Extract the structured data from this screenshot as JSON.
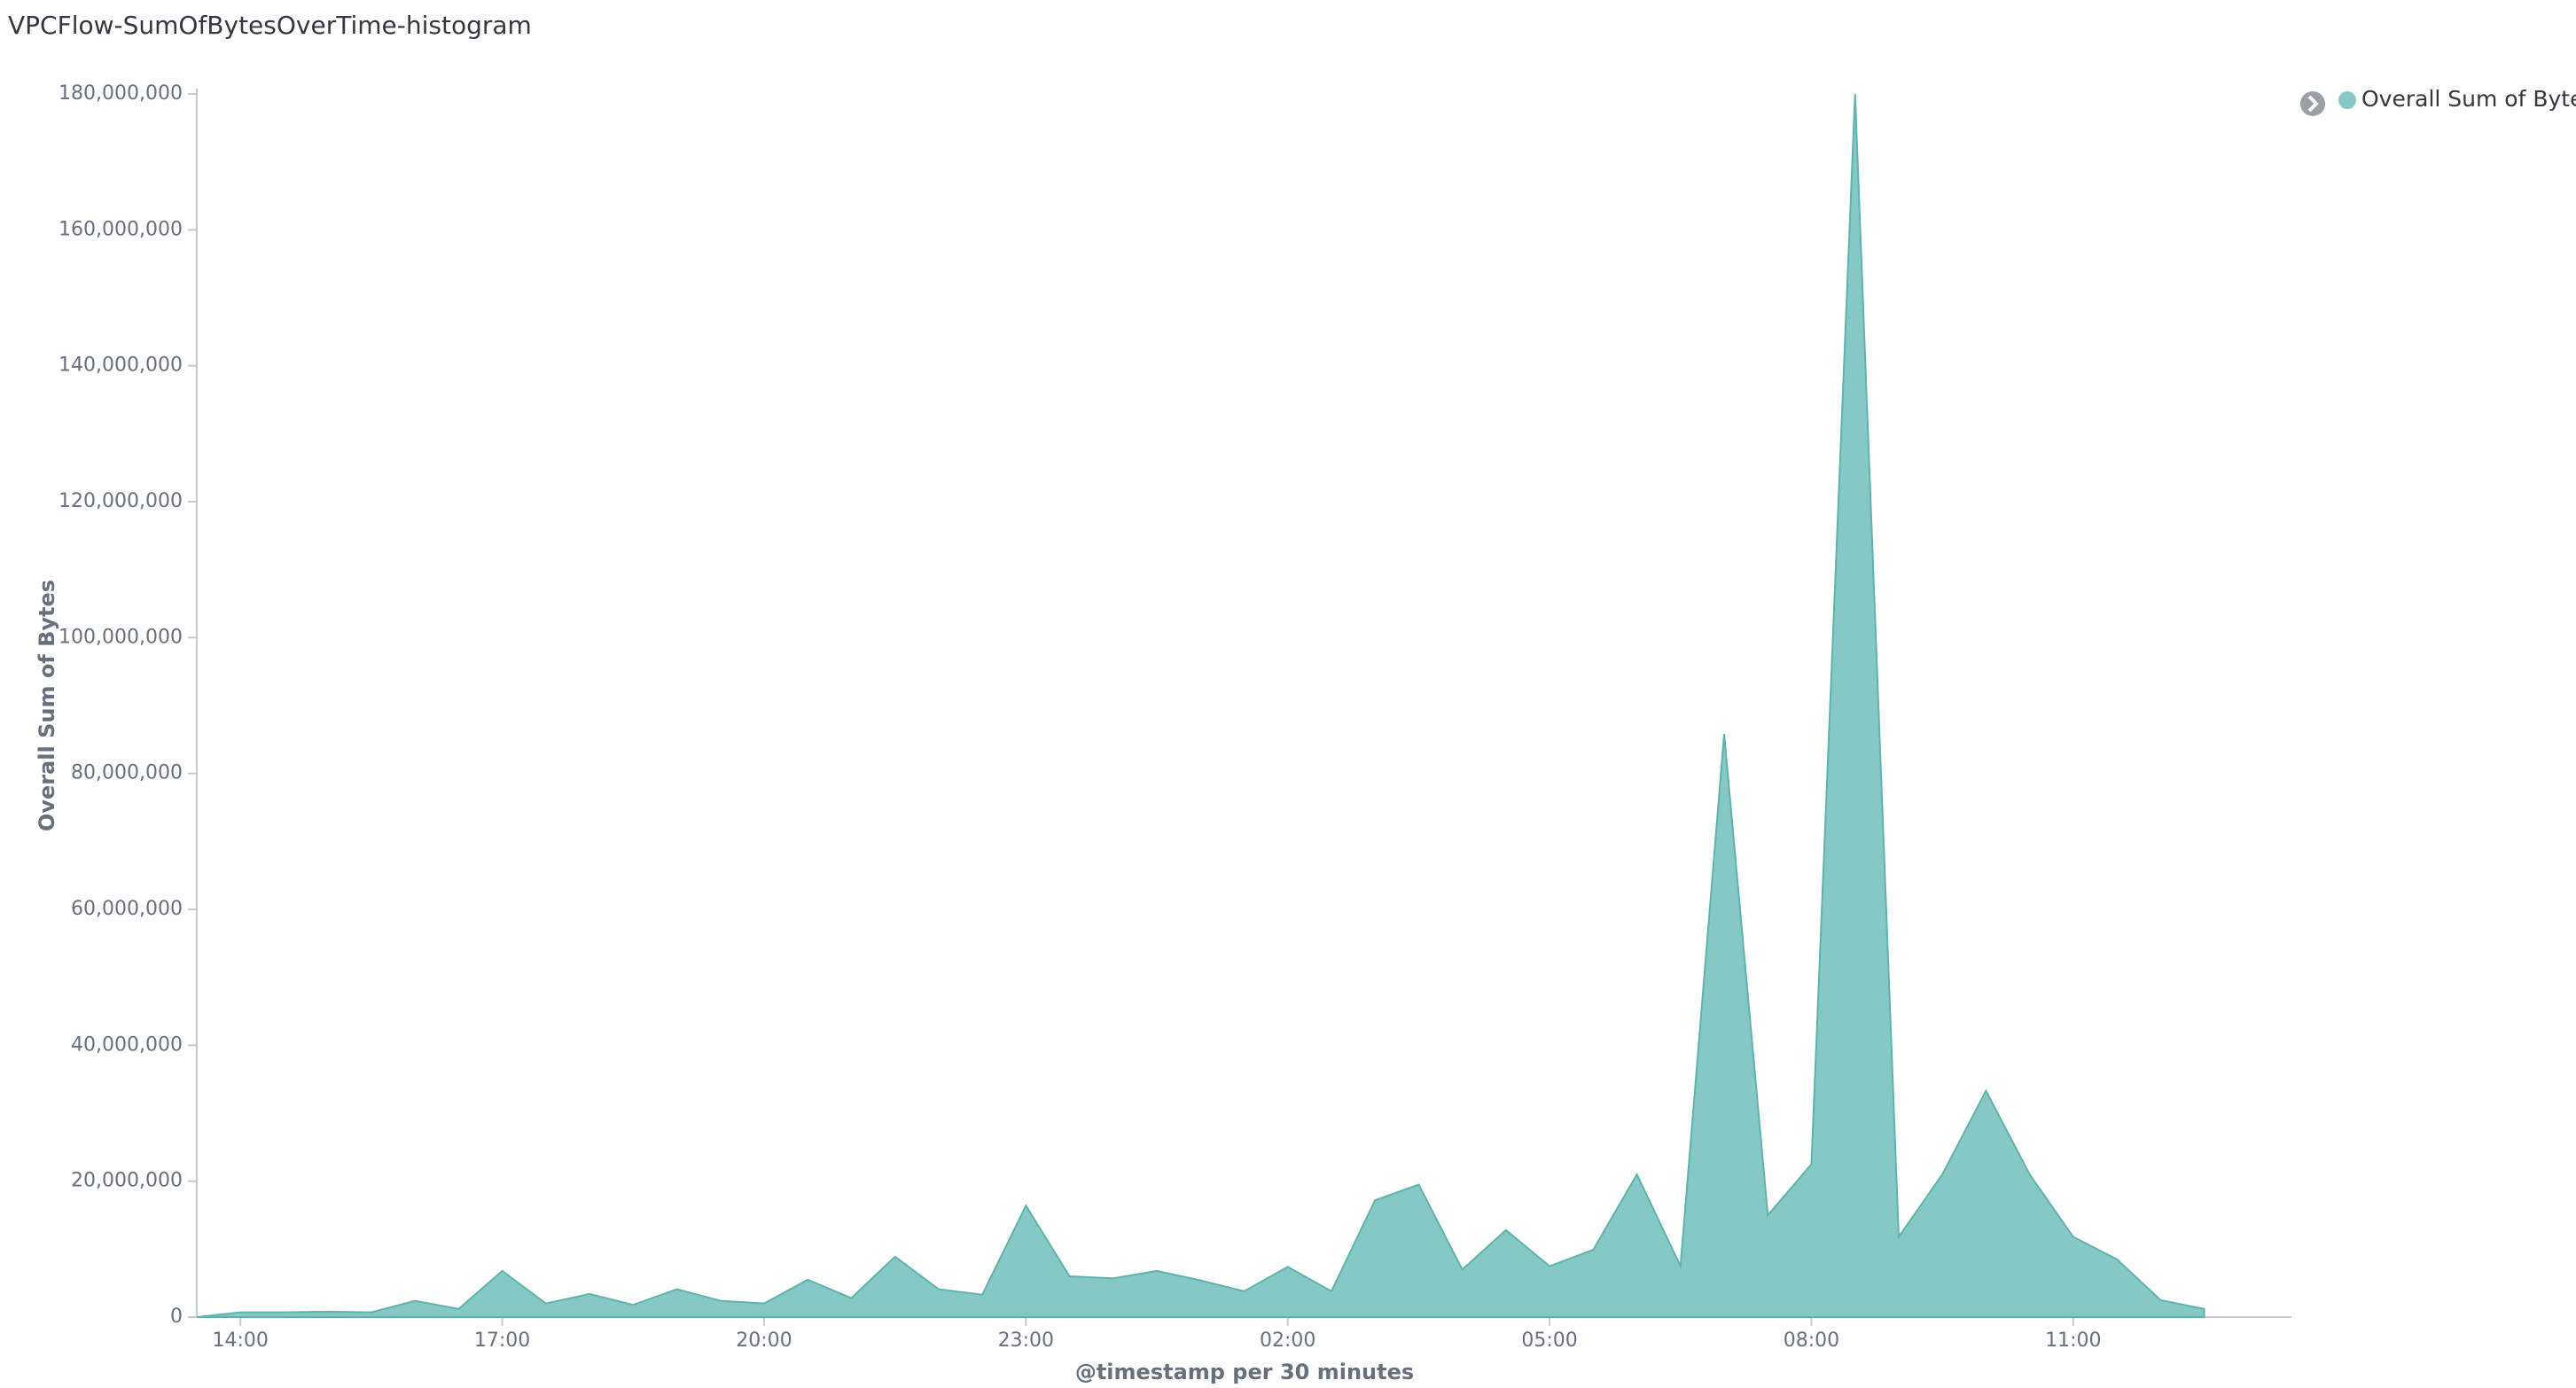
{
  "chart_data": {
    "type": "area",
    "title": "VPCFlow-SumOfBytesOverTime-histogram",
    "x_label": "@timestamp per 30 minutes",
    "y_label": "Overall Sum of Bytes",
    "categories": [
      null,
      "14:00",
      null,
      null,
      null,
      null,
      null,
      "17:00",
      null,
      null,
      null,
      null,
      null,
      "20:00",
      null,
      null,
      null,
      null,
      null,
      "23:00",
      null,
      null,
      null,
      null,
      null,
      "02:00",
      null,
      null,
      null,
      null,
      null,
      "05:00",
      null,
      null,
      null,
      null,
      null,
      "08:00",
      null,
      null,
      null,
      null,
      null,
      "11:00",
      null,
      null,
      null
    ],
    "series": [
      {
        "name": "Overall Sum of Bytes",
        "color": "#86c9c4",
        "values": [
          0,
          700000,
          700000,
          800000,
          700000,
          2400000,
          1200000,
          6800000,
          2000000,
          3400000,
          1800000,
          4100000,
          2400000,
          2000000,
          5500000,
          2800000,
          8900000,
          4100000,
          3300000,
          16400000,
          6000000,
          5700000,
          6800000,
          5400000,
          3800000,
          7400000,
          3800000,
          17200000,
          19500000,
          7000000,
          12800000,
          7500000,
          9900000,
          21000000,
          7500000,
          85800000,
          15000000,
          22500000,
          180000000,
          11800000,
          21000000,
          33300000,
          21000000,
          11800000,
          8500000,
          2500000,
          1200000
        ]
      }
    ],
    "ylim": [
      0,
      180000000
    ],
    "yticks": [
      0,
      {
        "value": 20000000,
        "label": "20,000,000"
      },
      {
        "value": 40000000,
        "label": "40,000,000"
      },
      {
        "value": 60000000,
        "label": "60,000,000"
      },
      {
        "value": 80000000,
        "label": "80,000,000"
      },
      {
        "value": 100000000,
        "label": "100,000,000"
      },
      {
        "value": 120000000,
        "label": "120,000,000"
      },
      {
        "value": 140000000,
        "label": "140,000,000"
      },
      {
        "value": 160000000,
        "label": "160,000,000"
      },
      {
        "value": 180000000,
        "label": "180,000,000"
      }
    ],
    "grid": false,
    "legend": "top-right"
  }
}
